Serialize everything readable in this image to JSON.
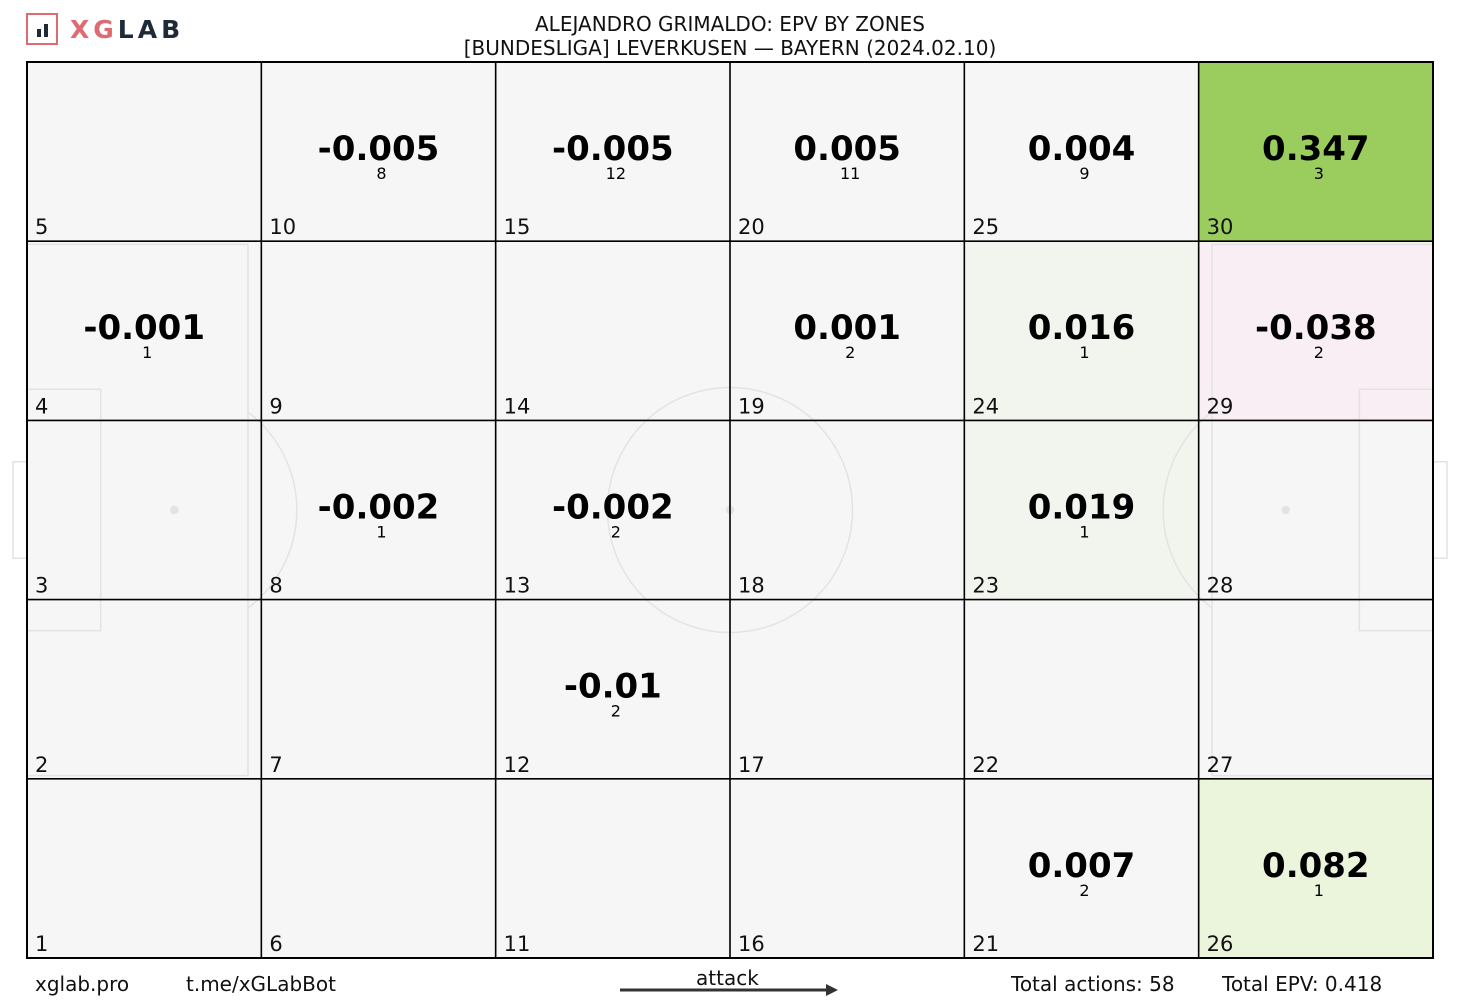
{
  "brand": {
    "logo_text_xg": "XG",
    "logo_text_lab": "LAB"
  },
  "header": {
    "title": "ALEJANDRO GRIMALDO: EPV BY ZONES",
    "subtitle": "[BUNDESLIGA] LEVERKUSEN —  BAYERN (2024.02.10)"
  },
  "footer": {
    "site": "xglab.pro",
    "bot": "t.me/xGLabBot",
    "attack_label": "attack",
    "total_actions": "Total actions: 58",
    "total_epv": "Total EPV: 0.418"
  },
  "colors": {
    "positive_max": "#9acd5e",
    "positive_light": "#ebf5dc",
    "negative_light": "#f9eef3",
    "neutral": "#f6f6f6",
    "grid": "#000000",
    "pitch_lines": "#e3e3e3",
    "logo_accent": "#e06a72",
    "logo_dark": "#1f2a38"
  },
  "chart_data": {
    "type": "heatmap",
    "title": "ALEJANDRO GRIMALDO: EPV BY ZONES",
    "subtitle": "[BUNDESLIGA] LEVERKUSEN —  BAYERN (2024.02.10)",
    "columns": 6,
    "rows": 5,
    "zone_numbering": "zones numbered bottom-to-top within each column, columns left-to-right (zone 1 bottom-left, zone 30 top-right)",
    "attack_direction": "left-to-right",
    "zones": [
      {
        "zone": 1,
        "epv": null,
        "count": null
      },
      {
        "zone": 2,
        "epv": null,
        "count": null
      },
      {
        "zone": 3,
        "epv": null,
        "count": null
      },
      {
        "zone": 4,
        "epv": -0.001,
        "count": 1
      },
      {
        "zone": 5,
        "epv": null,
        "count": null
      },
      {
        "zone": 6,
        "epv": null,
        "count": null
      },
      {
        "zone": 7,
        "epv": null,
        "count": null
      },
      {
        "zone": 8,
        "epv": -0.002,
        "count": 1
      },
      {
        "zone": 9,
        "epv": null,
        "count": null
      },
      {
        "zone": 10,
        "epv": -0.005,
        "count": 8
      },
      {
        "zone": 11,
        "epv": null,
        "count": null
      },
      {
        "zone": 12,
        "epv": -0.01,
        "count": 2
      },
      {
        "zone": 13,
        "epv": -0.002,
        "count": 2
      },
      {
        "zone": 14,
        "epv": null,
        "count": null
      },
      {
        "zone": 15,
        "epv": -0.005,
        "count": 12
      },
      {
        "zone": 16,
        "epv": null,
        "count": null
      },
      {
        "zone": 17,
        "epv": null,
        "count": null
      },
      {
        "zone": 18,
        "epv": null,
        "count": null
      },
      {
        "zone": 19,
        "epv": 0.001,
        "count": 2
      },
      {
        "zone": 20,
        "epv": 0.005,
        "count": 11
      },
      {
        "zone": 21,
        "epv": 0.007,
        "count": 2
      },
      {
        "zone": 22,
        "epv": null,
        "count": null
      },
      {
        "zone": 23,
        "epv": 0.019,
        "count": 1
      },
      {
        "zone": 24,
        "epv": 0.016,
        "count": 1
      },
      {
        "zone": 25,
        "epv": 0.004,
        "count": 9
      },
      {
        "zone": 26,
        "epv": 0.082,
        "count": 1
      },
      {
        "zone": 27,
        "epv": null,
        "count": null
      },
      {
        "zone": 28,
        "epv": null,
        "count": null
      },
      {
        "zone": 29,
        "epv": -0.038,
        "count": 2
      },
      {
        "zone": 30,
        "epv": 0.347,
        "count": 3
      }
    ],
    "total_actions": 58,
    "total_epv": 0.418
  }
}
